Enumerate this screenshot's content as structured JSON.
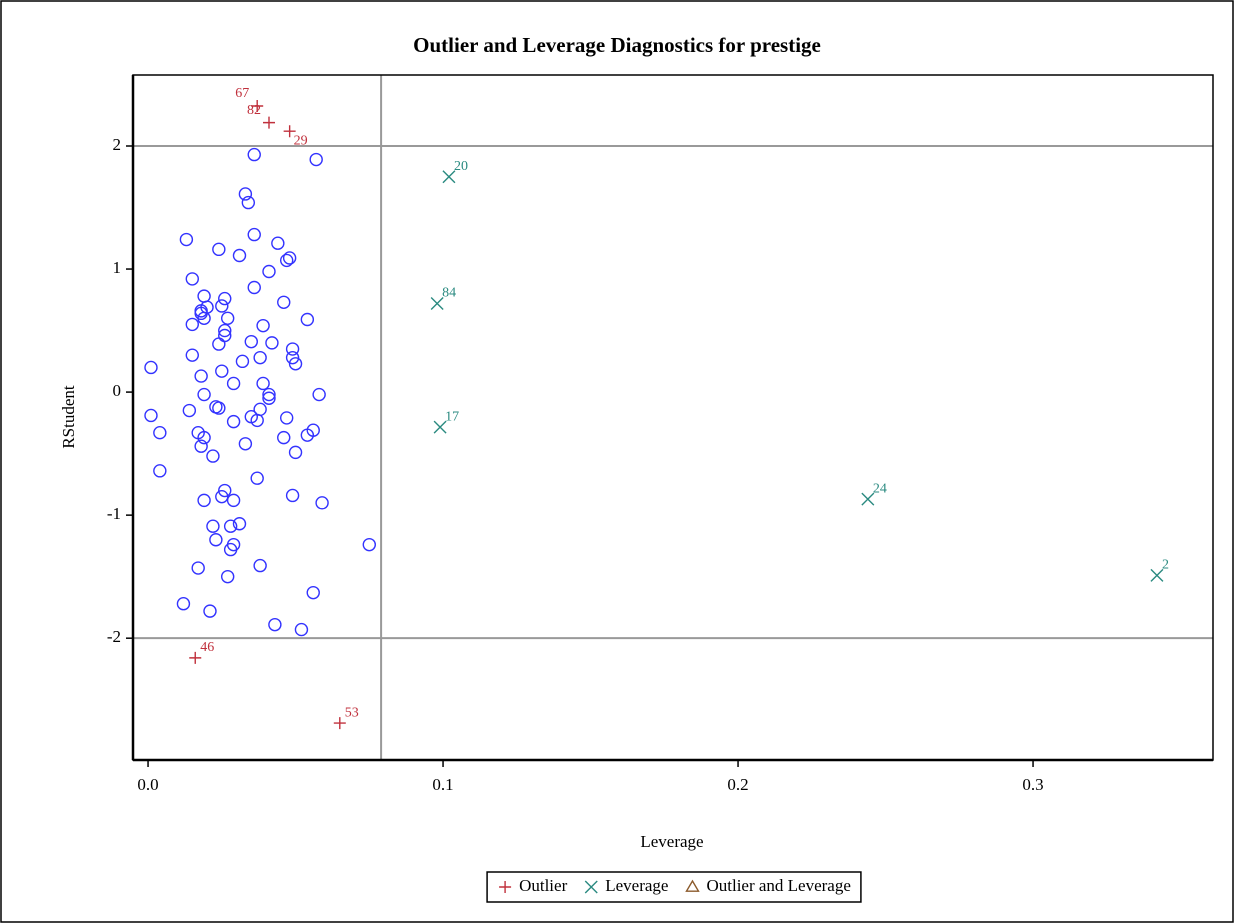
{
  "chart_data": {
    "type": "scatter",
    "title": "Outlier and Leverage Diagnostics for prestige",
    "x_label": "Leverage",
    "y_label": "RStudent",
    "xlim": [
      -0.0051,
      0.361
    ],
    "ylim": [
      -2.99,
      2.577
    ],
    "xticks": [
      {
        "value": 0,
        "label": "0.0"
      },
      0.1,
      0.2,
      0.3
    ],
    "yticks": [
      -2,
      -1,
      0,
      1,
      2
    ],
    "reference_lines": {
      "y": [
        -2,
        2
      ],
      "x": [
        0.079
      ]
    },
    "series": [
      {
        "marker": "circle",
        "color": "#3333ff",
        "x": [
          0.036,
          0.057,
          0.033,
          0.034,
          0.013,
          0.036,
          0.044,
          0.024,
          0.031,
          0.048,
          0.047,
          0.041,
          0.015,
          0.036,
          0.019,
          0.026,
          0.046,
          0.025,
          0.018,
          0.02,
          0.015,
          0.027,
          0.019,
          0.018,
          0.039,
          0.054,
          0.026,
          0.026,
          0.035,
          0.024,
          0.042,
          0.049,
          0.015,
          0.038,
          0.049,
          0.032,
          0.05,
          0.025,
          0.001,
          0.018,
          0.029,
          0.039,
          0.019,
          0.058,
          0.041,
          0.041,
          0.001,
          0.014,
          0.023,
          0.024,
          0.038,
          0.047,
          0.035,
          0.037,
          0.029,
          0.056,
          0.054,
          0.004,
          0.017,
          0.019,
          0.046,
          0.033,
          0.018,
          0.022,
          0.05,
          0.004,
          0.037,
          0.026,
          0.049,
          0.025,
          0.059,
          0.019,
          0.029,
          0.031,
          0.022,
          0.028,
          0.023,
          0.029,
          0.028,
          0.075,
          0.017,
          0.038,
          0.027,
          0.056,
          0.012,
          0.021,
          0.043,
          0.052
        ],
        "values": [
          1.93,
          1.89,
          1.61,
          1.54,
          1.24,
          1.28,
          1.21,
          1.16,
          1.11,
          1.09,
          1.07,
          0.98,
          0.92,
          0.85,
          0.78,
          0.76,
          0.73,
          0.7,
          0.66,
          0.69,
          0.55,
          0.6,
          0.6,
          0.64,
          0.54,
          0.59,
          0.5,
          0.46,
          0.41,
          0.39,
          0.4,
          0.35,
          0.3,
          0.28,
          0.28,
          0.25,
          0.23,
          0.17,
          0.2,
          0.13,
          0.07,
          0.07,
          -0.02,
          -0.02,
          -0.02,
          -0.05,
          -0.19,
          -0.15,
          -0.12,
          -0.13,
          -0.14,
          -0.21,
          -0.2,
          -0.23,
          -0.24,
          -0.31,
          -0.35,
          -0.33,
          -0.33,
          -0.37,
          -0.37,
          -0.42,
          -0.44,
          -0.52,
          -0.49,
          -0.64,
          -0.7,
          -0.8,
          -0.84,
          -0.85,
          -0.9,
          -0.88,
          -0.88,
          -1.07,
          -1.09,
          -1.09,
          -1.2,
          -1.24,
          -1.28,
          -1.24,
          -1.43,
          -1.41,
          -1.5,
          -1.63,
          -1.72,
          -1.78,
          -1.89,
          -1.93
        ]
      },
      {
        "name": "Outlier",
        "marker": "plus",
        "color": "#c0303c",
        "x": [
          0.037,
          0.041,
          0.048,
          0.016,
          0.065
        ],
        "values": [
          2.325,
          2.19,
          2.12,
          -2.16,
          -2.69
        ],
        "labels": [
          "67",
          "82",
          "29",
          "46",
          "53"
        ]
      },
      {
        "name": "Leverage",
        "marker": "cross",
        "color": "#2a8a80",
        "x": [
          0.102,
          0.098,
          0.099,
          0.244,
          0.342
        ],
        "values": [
          1.75,
          0.72,
          -0.285,
          -0.87,
          -1.49
        ],
        "labels": [
          "20",
          "84",
          "17",
          "24",
          "2"
        ]
      },
      {
        "name": "Outlier and Leverage",
        "marker": "triangle",
        "color": "#8b5a2b",
        "x": [],
        "values": [],
        "labels": []
      }
    ]
  }
}
